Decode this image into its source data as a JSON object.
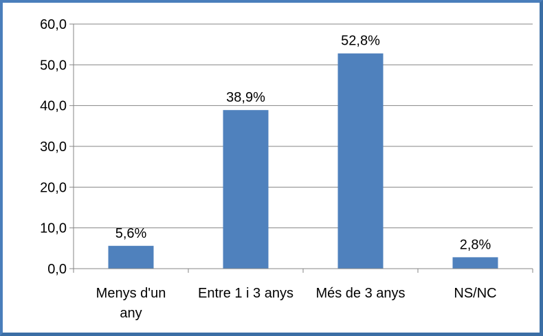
{
  "chart_data": {
    "type": "bar",
    "categories": [
      [
        "Menys d'un",
        "any"
      ],
      [
        "Entre 1 i 3 anys"
      ],
      [
        "Més de 3 anys"
      ],
      [
        "NS/NC"
      ]
    ],
    "values": [
      5.6,
      38.9,
      52.8,
      2.8
    ],
    "data_labels": [
      "5,6%",
      "38,9%",
      "52,8%",
      "2,8%"
    ],
    "y_ticks": [
      "0,0",
      "10,0",
      "20,0",
      "30,0",
      "40,0",
      "50,0",
      "60,0"
    ],
    "ylim": [
      0,
      60
    ],
    "grid": true,
    "legend": "none",
    "bar_color": "#4f81bd",
    "frame_color": "#4a7ebb"
  }
}
